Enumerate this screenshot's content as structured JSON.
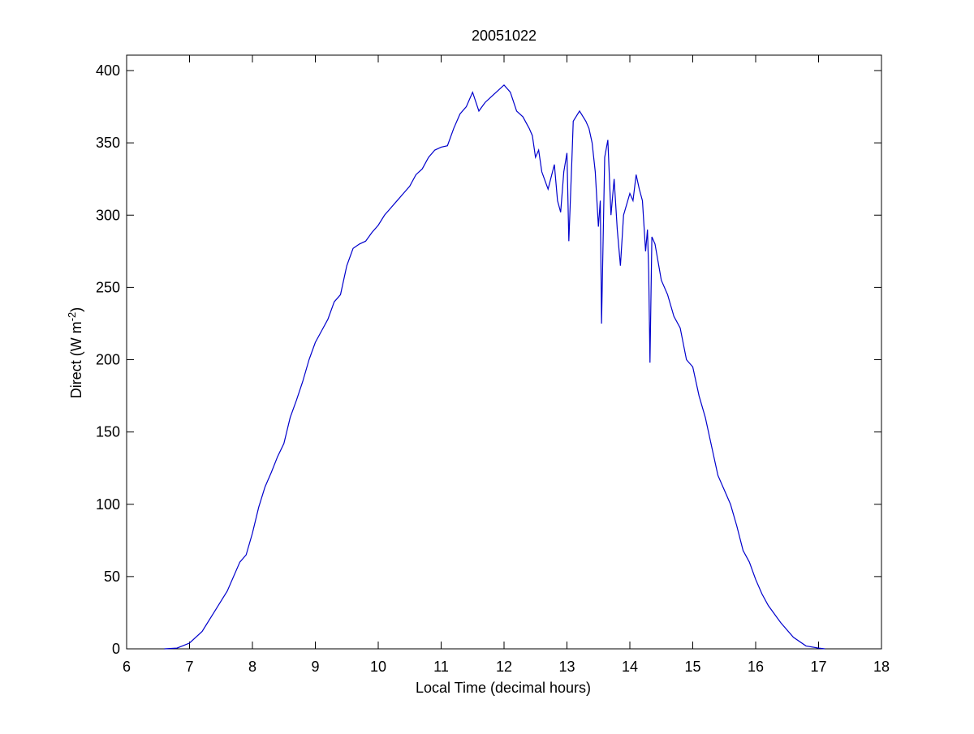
{
  "chart_data": {
    "type": "line",
    "title": "20051022",
    "xlabel": "Local Time (decimal hours)",
    "ylabel": {
      "text": "Direct (W m",
      "superscript": "-2",
      "end": ")"
    },
    "color": "#0000cc",
    "x": [
      6.6,
      6.8,
      7.0,
      7.2,
      7.4,
      7.6,
      7.8,
      7.9,
      8.0,
      8.1,
      8.2,
      8.3,
      8.4,
      8.5,
      8.6,
      8.7,
      8.8,
      8.9,
      9.0,
      9.1,
      9.2,
      9.3,
      9.4,
      9.5,
      9.6,
      9.7,
      9.8,
      9.9,
      10.0,
      10.1,
      10.2,
      10.3,
      10.4,
      10.5,
      10.6,
      10.7,
      10.8,
      10.9,
      11.0,
      11.1,
      11.2,
      11.3,
      11.4,
      11.5,
      11.6,
      11.7,
      11.8,
      11.9,
      12.0,
      12.1,
      12.2,
      12.3,
      12.4,
      12.45,
      12.5,
      12.55,
      12.6,
      12.7,
      12.8,
      12.85,
      12.9,
      12.95,
      13.0,
      13.03,
      13.08,
      13.1,
      13.2,
      13.3,
      13.35,
      13.4,
      13.45,
      13.5,
      13.53,
      13.55,
      13.6,
      13.65,
      13.7,
      13.75,
      13.8,
      13.85,
      13.9,
      14.0,
      14.05,
      14.1,
      14.15,
      14.2,
      14.25,
      14.28,
      14.3,
      14.32,
      14.35,
      14.4,
      14.5,
      14.6,
      14.7,
      14.8,
      14.9,
      15.0,
      15.1,
      15.2,
      15.3,
      15.4,
      15.5,
      15.6,
      15.7,
      15.8,
      15.9,
      16.0,
      16.1,
      16.2,
      16.4,
      16.6,
      16.8,
      17.0,
      17.1
    ],
    "values": [
      0,
      0.5,
      4,
      12,
      26,
      40,
      60,
      65,
      80,
      98,
      112,
      122,
      133,
      142,
      160,
      172,
      185,
      200,
      212,
      220,
      228,
      240,
      245,
      265,
      277,
      280,
      282,
      288,
      293,
      300,
      305,
      310,
      315,
      320,
      328,
      332,
      340,
      345,
      347,
      348,
      360,
      370,
      375,
      385,
      372,
      378,
      382,
      386,
      390,
      385,
      372,
      368,
      360,
      355,
      340,
      345,
      330,
      318,
      335,
      310,
      302,
      330,
      343,
      282,
      340,
      365,
      372,
      365,
      360,
      350,
      330,
      292,
      310,
      225,
      340,
      352,
      300,
      325,
      290,
      265,
      300,
      315,
      310,
      328,
      318,
      310,
      275,
      290,
      260,
      198,
      285,
      280,
      255,
      245,
      230,
      222,
      200,
      195,
      175,
      160,
      140,
      120,
      110,
      100,
      85,
      68,
      60,
      48,
      38,
      30,
      18,
      8,
      2,
      0.5,
      0
    ],
    "xlim": [
      6,
      18
    ],
    "ylim": [
      0,
      400
    ],
    "xticks": [
      6,
      7,
      8,
      9,
      10,
      11,
      12,
      13,
      14,
      15,
      16,
      17,
      18
    ],
    "yticks": [
      0,
      50,
      100,
      150,
      200,
      250,
      300,
      350,
      400
    ]
  }
}
